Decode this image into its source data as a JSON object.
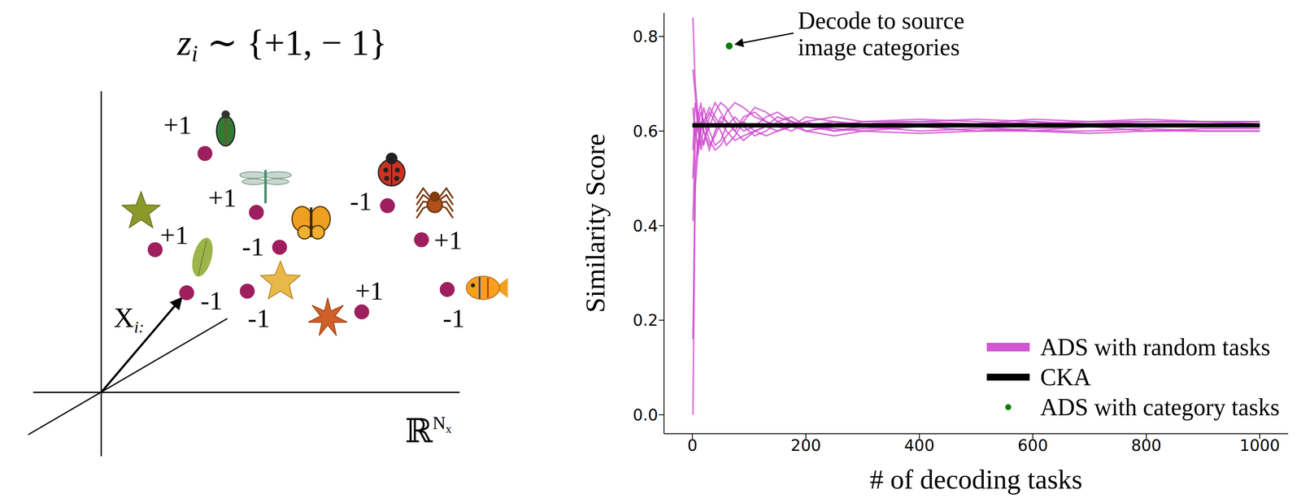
{
  "diagram": {
    "title": {
      "symbol": "z",
      "subscript": "i",
      "text": "∼ {+1, − 1}"
    },
    "vector_label": {
      "symbol": "X",
      "subscript": "i:"
    },
    "space_label": {
      "symbol": "ℝ",
      "superscript": "N",
      "superscript_subscript": "x"
    },
    "points": [
      {
        "label": "+1"
      },
      {
        "label": "+1"
      },
      {
        "label": "+1"
      },
      {
        "label": "-1"
      },
      {
        "label": "-1"
      },
      {
        "label": "-1"
      },
      {
        "label": "+1"
      },
      {
        "label": "-1"
      },
      {
        "label": "+1"
      },
      {
        "label": "-1"
      }
    ]
  },
  "chart_data": {
    "type": "line",
    "x_label": "# of decoding tasks",
    "y_label": "Similarity Score",
    "xlim": [
      -50,
      1050
    ],
    "ylim": [
      -0.04,
      0.85
    ],
    "xticks": [
      0,
      200,
      400,
      600,
      800,
      1000
    ],
    "yticks": [
      {
        "value": 0,
        "label": "0.0"
      },
      0.2,
      0.4,
      0.6,
      0.8
    ],
    "legend": "lower right",
    "x": [
      1,
      5,
      10,
      15,
      20,
      30,
      40,
      50,
      60,
      75,
      90,
      110,
      130,
      150,
      175,
      200,
      250,
      300,
      400,
      500,
      600,
      700,
      800,
      900,
      1000
    ],
    "series": [
      {
        "name": "ADS with random tasks",
        "color": "#cc44cc",
        "runs": [
          [
            0.0,
            0.52,
            0.58,
            0.6,
            0.62,
            0.65,
            0.63,
            0.61,
            0.64,
            0.66,
            0.65,
            0.63,
            0.62,
            0.61,
            0.62,
            0.61,
            0.62,
            0.61,
            0.615,
            0.61,
            0.62,
            0.61,
            0.615,
            0.61,
            0.61
          ],
          [
            0.16,
            0.48,
            0.56,
            0.62,
            0.6,
            0.57,
            0.59,
            0.62,
            0.6,
            0.58,
            0.59,
            0.6,
            0.61,
            0.6,
            0.61,
            0.62,
            0.6,
            0.61,
            0.6,
            0.605,
            0.6,
            0.6,
            0.605,
            0.6,
            0.6
          ],
          [
            0.41,
            0.58,
            0.64,
            0.59,
            0.57,
            0.63,
            0.66,
            0.64,
            0.62,
            0.6,
            0.63,
            0.64,
            0.62,
            0.61,
            0.6,
            0.62,
            0.63,
            0.62,
            0.62,
            0.615,
            0.625,
            0.62,
            0.62,
            0.62,
            0.615
          ],
          [
            0.5,
            0.62,
            0.55,
            0.61,
            0.65,
            0.6,
            0.57,
            0.58,
            0.61,
            0.63,
            0.61,
            0.59,
            0.6,
            0.62,
            0.63,
            0.61,
            0.6,
            0.605,
            0.61,
            0.6,
            0.605,
            0.61,
            0.6,
            0.605,
            0.605
          ],
          [
            0.56,
            0.66,
            0.62,
            0.56,
            0.58,
            0.61,
            0.64,
            0.66,
            0.65,
            0.62,
            0.6,
            0.61,
            0.63,
            0.64,
            0.62,
            0.6,
            0.61,
            0.62,
            0.625,
            0.62,
            0.615,
            0.62,
            0.625,
            0.62,
            0.62
          ],
          [
            0.65,
            0.59,
            0.61,
            0.64,
            0.62,
            0.58,
            0.56,
            0.57,
            0.59,
            0.61,
            0.62,
            0.6,
            0.59,
            0.6,
            0.61,
            0.6,
            0.59,
            0.6,
            0.595,
            0.6,
            0.6,
            0.595,
            0.6,
            0.6,
            0.6
          ],
          [
            0.73,
            0.68,
            0.6,
            0.57,
            0.61,
            0.64,
            0.62,
            0.6,
            0.57,
            0.59,
            0.62,
            0.65,
            0.64,
            0.62,
            0.61,
            0.63,
            0.62,
            0.615,
            0.62,
            0.625,
            0.62,
            0.615,
            0.62,
            0.62,
            0.62
          ],
          [
            0.84,
            0.7,
            0.63,
            0.66,
            0.6,
            0.56,
            0.6,
            0.63,
            0.62,
            0.6,
            0.58,
            0.6,
            0.61,
            0.63,
            0.62,
            0.61,
            0.605,
            0.6,
            0.61,
            0.61,
            0.6,
            0.61,
            0.61,
            0.615,
            0.61
          ]
        ]
      },
      {
        "name": "CKA",
        "color": "#000000",
        "x": [
          0,
          1000
        ],
        "values": [
          0.612,
          0.612
        ]
      },
      {
        "name": "ADS with category tasks",
        "type": "scatter",
        "color": "#008000",
        "marker": "circle",
        "x": [
          65
        ],
        "values": [
          0.78
        ]
      }
    ],
    "annotation": {
      "text": "Decode to source image categories",
      "target": "ADS with category tasks"
    }
  }
}
